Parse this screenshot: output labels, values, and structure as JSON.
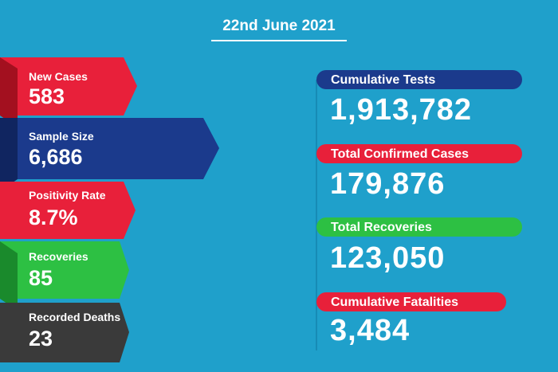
{
  "header": {
    "date": "22nd June 2021"
  },
  "left_panels": [
    {
      "label": "New Cases",
      "value": "583"
    },
    {
      "label": "Sample Size",
      "value": "6,686"
    },
    {
      "label": "Positivity Rate",
      "value": "8.7%"
    },
    {
      "label": "Recoveries",
      "value": "85"
    },
    {
      "label": "Recorded Deaths",
      "value": "23"
    }
  ],
  "right_panels": [
    {
      "label": "Cumulative Tests",
      "value": "1,913,782"
    },
    {
      "label": "Total Confirmed Cases",
      "value": "179,876"
    },
    {
      "label": "Total Recoveries",
      "value": "123,050"
    },
    {
      "label": "Cumulative Fatalities",
      "value": "3,484"
    }
  ]
}
